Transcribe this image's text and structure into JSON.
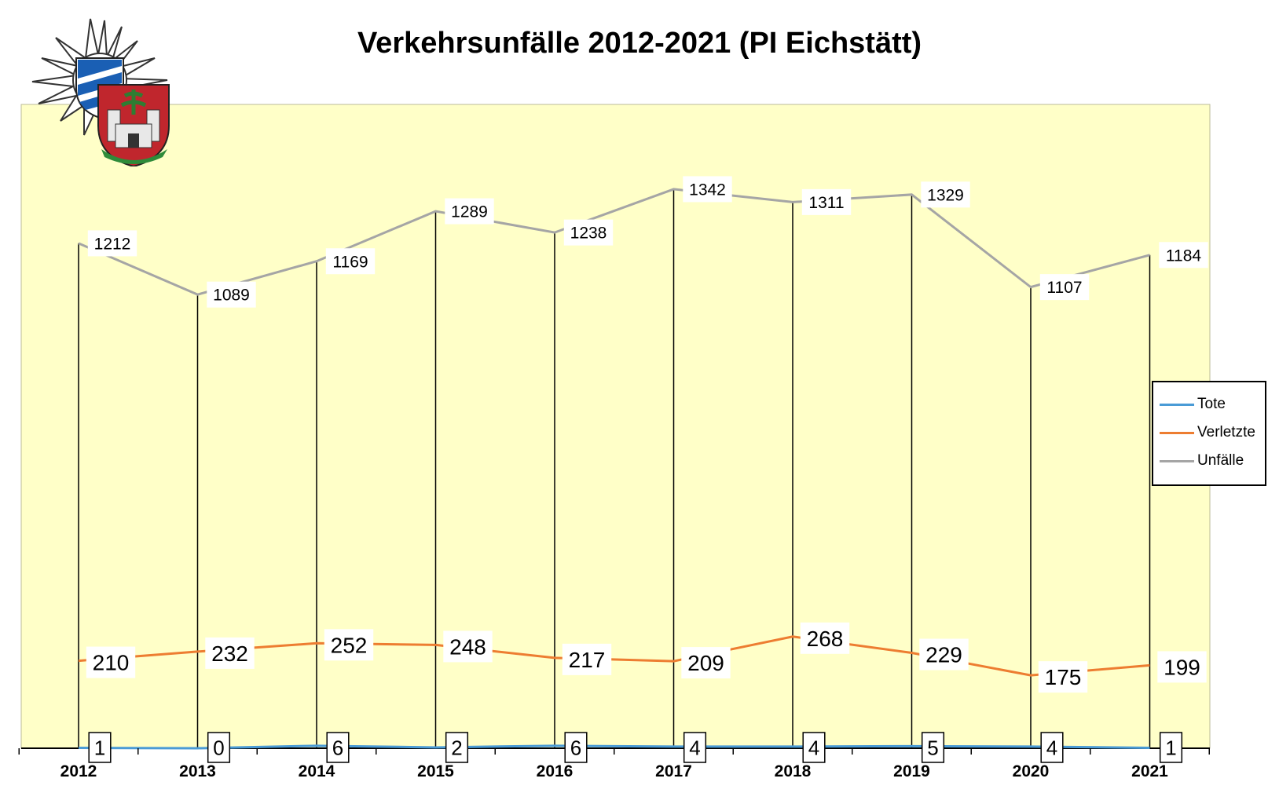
{
  "chart_data": {
    "type": "line",
    "title": "Verkehrsunfälle 2012-2021 (PI Eichstätt)",
    "categories": [
      "2012",
      "2013",
      "2014",
      "2015",
      "2016",
      "2017",
      "2018",
      "2019",
      "2020",
      "2021"
    ],
    "series": [
      {
        "name": "Tote",
        "color": "#4a9bd6",
        "values": [
          1,
          0,
          6,
          2,
          6,
          4,
          4,
          5,
          4,
          1
        ]
      },
      {
        "name": "Verletzte",
        "color": "#ed7d31",
        "values": [
          210,
          232,
          252,
          248,
          217,
          209,
          268,
          229,
          175,
          199
        ]
      },
      {
        "name": "Unfälle",
        "color": "#a5a5a5",
        "values": [
          1212,
          1089,
          1169,
          1289,
          1238,
          1342,
          1311,
          1329,
          1107,
          1184
        ]
      }
    ],
    "ylim": [
      0,
      1600
    ],
    "plot_background": "#ffffc8",
    "drop_lines": true,
    "grid": false,
    "legend_position": "right"
  }
}
